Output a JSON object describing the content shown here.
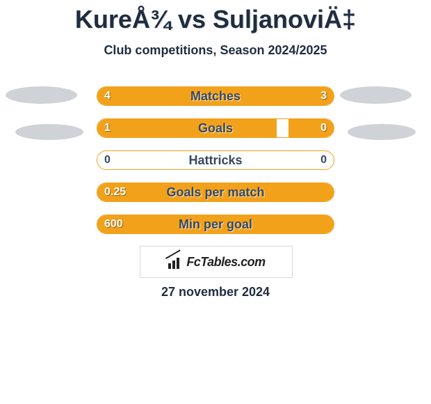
{
  "title": "KureÅ¾ vs SuljanoviÄ‡",
  "subtitle": "Club competitions, Season 2024/2025",
  "date": "27 november 2024",
  "logo_text": "FcTables.com",
  "colors": {
    "accent": "#f2a11b",
    "text_dark": "#1f2d40",
    "ellipse": "#cfd2d6",
    "bg": "#ffffff"
  },
  "bars": {
    "0": {
      "label": "Matches",
      "left_value": "4",
      "right_value": "3",
      "left_pct": 57.1,
      "right_pct": 42.9,
      "left_on_fill": true,
      "right_on_fill": true
    },
    "1": {
      "label": "Goals",
      "left_value": "1",
      "right_value": "0",
      "left_pct": 76.0,
      "right_pct": 19.0,
      "left_on_fill": true,
      "right_on_fill": true
    },
    "2": {
      "label": "Hattricks",
      "left_value": "0",
      "right_value": "0",
      "left_pct": 0,
      "right_pct": 0,
      "left_on_fill": false,
      "right_on_fill": false
    },
    "3": {
      "label": "Goals per match",
      "left_value": "0.25",
      "right_value": "",
      "left_pct": 100,
      "right_pct": 0,
      "left_on_fill": true,
      "right_on_fill": false
    },
    "4": {
      "label": "Min per goal",
      "left_value": "600",
      "right_value": "",
      "left_pct": 100,
      "right_pct": 0,
      "left_on_fill": true,
      "right_on_fill": false
    }
  }
}
